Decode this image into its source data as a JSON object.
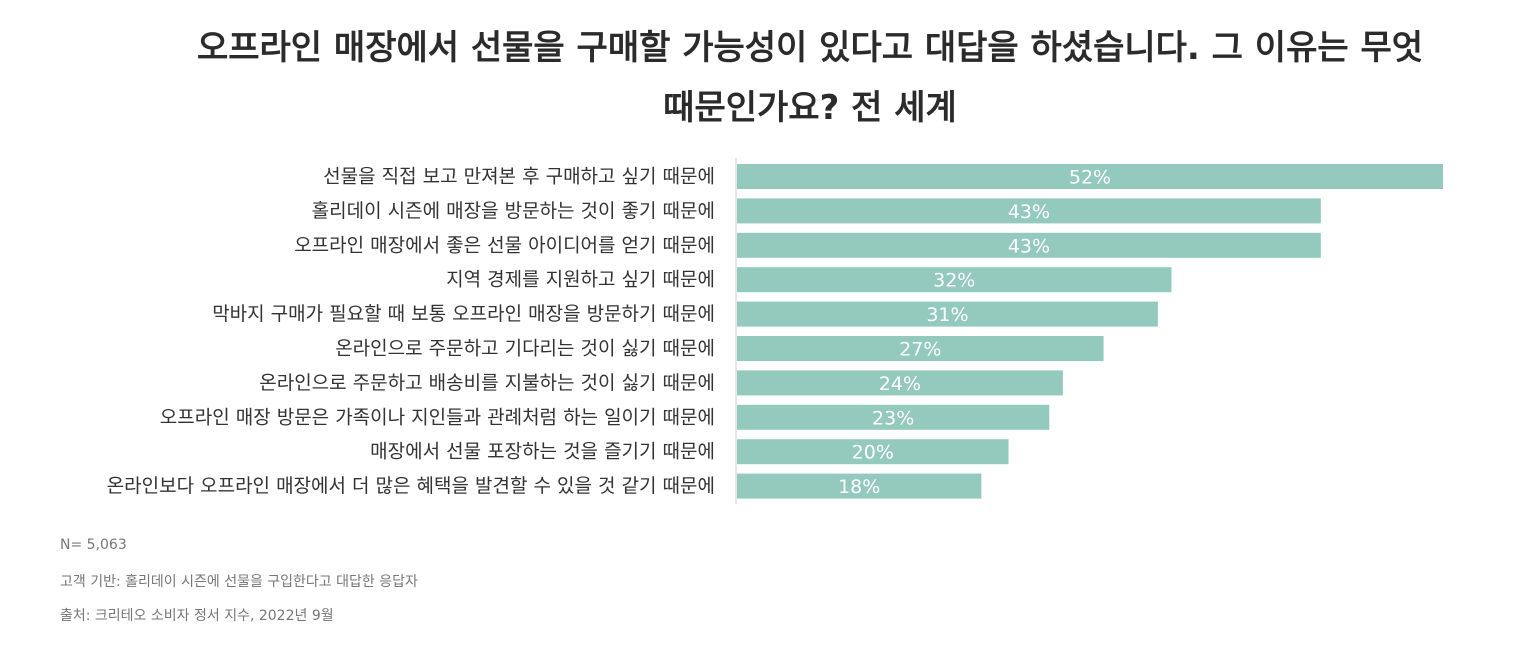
{
  "chart_data": {
    "type": "bar",
    "orientation": "horizontal",
    "title": "오프라인 매장에서 선물을 구매할 가능성이 있다고 대답을 하셨습니다. 그 이유는 무엇 때문인가요? 전 세계",
    "categories": [
      "선물을 직접 보고 만져본 후 구매하고 싶기 때문에",
      "홀리데이 시즌에 매장을 방문하는 것이 좋기 때문에",
      "오프라인 매장에서 좋은 선물 아이디어를 얻기 때문에",
      "지역 경제를 지원하고 싶기 때문에",
      "막바지 구매가 필요할 때 보통 오프라인 매장을 방문하기 때문에",
      "온라인으로 주문하고 기다리는 것이 싫기 때문에",
      "온라인으로 주문하고 배송비를 지불하는 것이 싫기 때문에",
      "오프라인 매장 방문은 가족이나 지인들과 관례처럼 하는 일이기 때문에",
      "매장에서 선물 포장하는 것을 즐기기 때문에",
      "온라인보다 오프라인 매장에서 더 많은 혜택을 발견할 수 있을 것 같기 때문에"
    ],
    "values": [
      52,
      43,
      43,
      32,
      31,
      27,
      24,
      23,
      20,
      18
    ],
    "value_labels": [
      "52%",
      "43%",
      "43%",
      "32%",
      "31%",
      "27%",
      "24%",
      "23%",
      "20%",
      "18%"
    ],
    "unit": "%",
    "xlim": [
      0,
      52
    ],
    "grid": false,
    "legend": "none",
    "bar_color": "#94c9bd",
    "axis_color": "#cccccc"
  },
  "notes": {
    "sample": "N= 5,063",
    "base": "고객 기반: 홀리데이 시즌에 선물을 구입한다고 대답한 응답자",
    "source": "출처: 크리테오 소비자 정서 지수, 2022년 9월"
  }
}
